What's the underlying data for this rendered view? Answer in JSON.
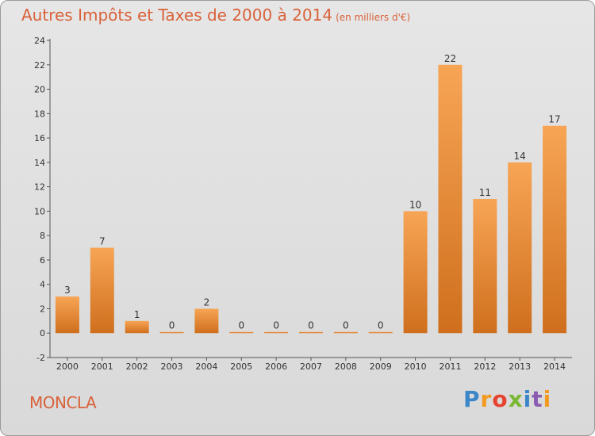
{
  "title": "Autres Impôts et Taxes de 2000 à 2014",
  "unit": "(en milliers d'€)",
  "commune": "MONCLA",
  "logo": {
    "text": "Proxiti"
  },
  "colors": {
    "accent": "#d9623a",
    "bar_light": "#f7a555",
    "bar_dark": "#cf6f1d"
  },
  "chart_data": {
    "type": "bar",
    "title": "Autres Impôts et Taxes de 2000 à 2014",
    "categories": [
      "2000",
      "2001",
      "2002",
      "2003",
      "2004",
      "2005",
      "2006",
      "2007",
      "2008",
      "2009",
      "2010",
      "2011",
      "2012",
      "2013",
      "2014"
    ],
    "values": [
      3,
      7,
      1,
      0,
      2,
      0,
      0,
      0,
      0,
      0,
      10,
      22,
      11,
      14,
      17
    ],
    "ylim": [
      -2,
      24
    ],
    "yticks": [
      -2,
      0,
      2,
      4,
      6,
      8,
      10,
      12,
      14,
      16,
      18,
      20,
      22,
      24
    ],
    "grid": false
  }
}
